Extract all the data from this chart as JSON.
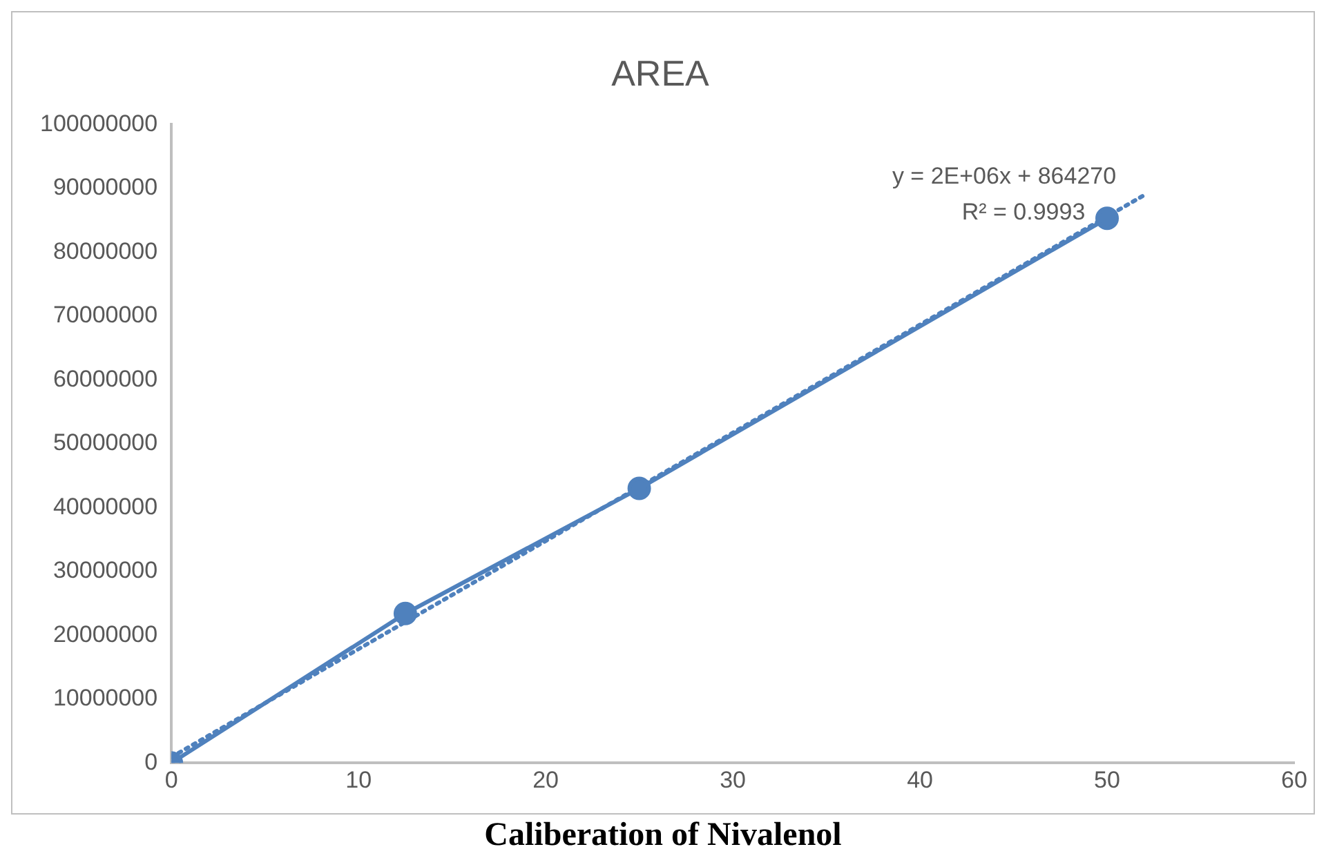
{
  "chart_data": {
    "type": "line",
    "title": "AREA",
    "annotations": [
      "y = 2E+06x + 864270",
      "R² = 0.9993",
      "Caliberation of Nivalenol"
    ],
    "series": [
      {
        "type": "line",
        "color": "#4f81bd",
        "x": [
          0,
          12.5,
          25,
          50
        ],
        "values": [
          0,
          23400000,
          43000000,
          85300000
        ],
        "marker": "circle",
        "line_style": "solid"
      },
      {
        "type": "line",
        "color": "#4f81bd",
        "x": [
          0,
          51.9
        ],
        "values": [
          900000,
          88800000
        ],
        "marker": "none",
        "line_style": "dotted"
      }
    ],
    "xlim": [
      0,
      60
    ],
    "xticks": [
      0,
      10,
      20,
      30,
      40,
      50,
      60
    ],
    "ylim": [
      0,
      100000000
    ],
    "yticks": [
      0,
      10000000,
      20000000,
      30000000,
      40000000,
      50000000,
      60000000,
      70000000,
      80000000,
      90000000,
      100000000
    ],
    "grid": false,
    "legend": false
  }
}
